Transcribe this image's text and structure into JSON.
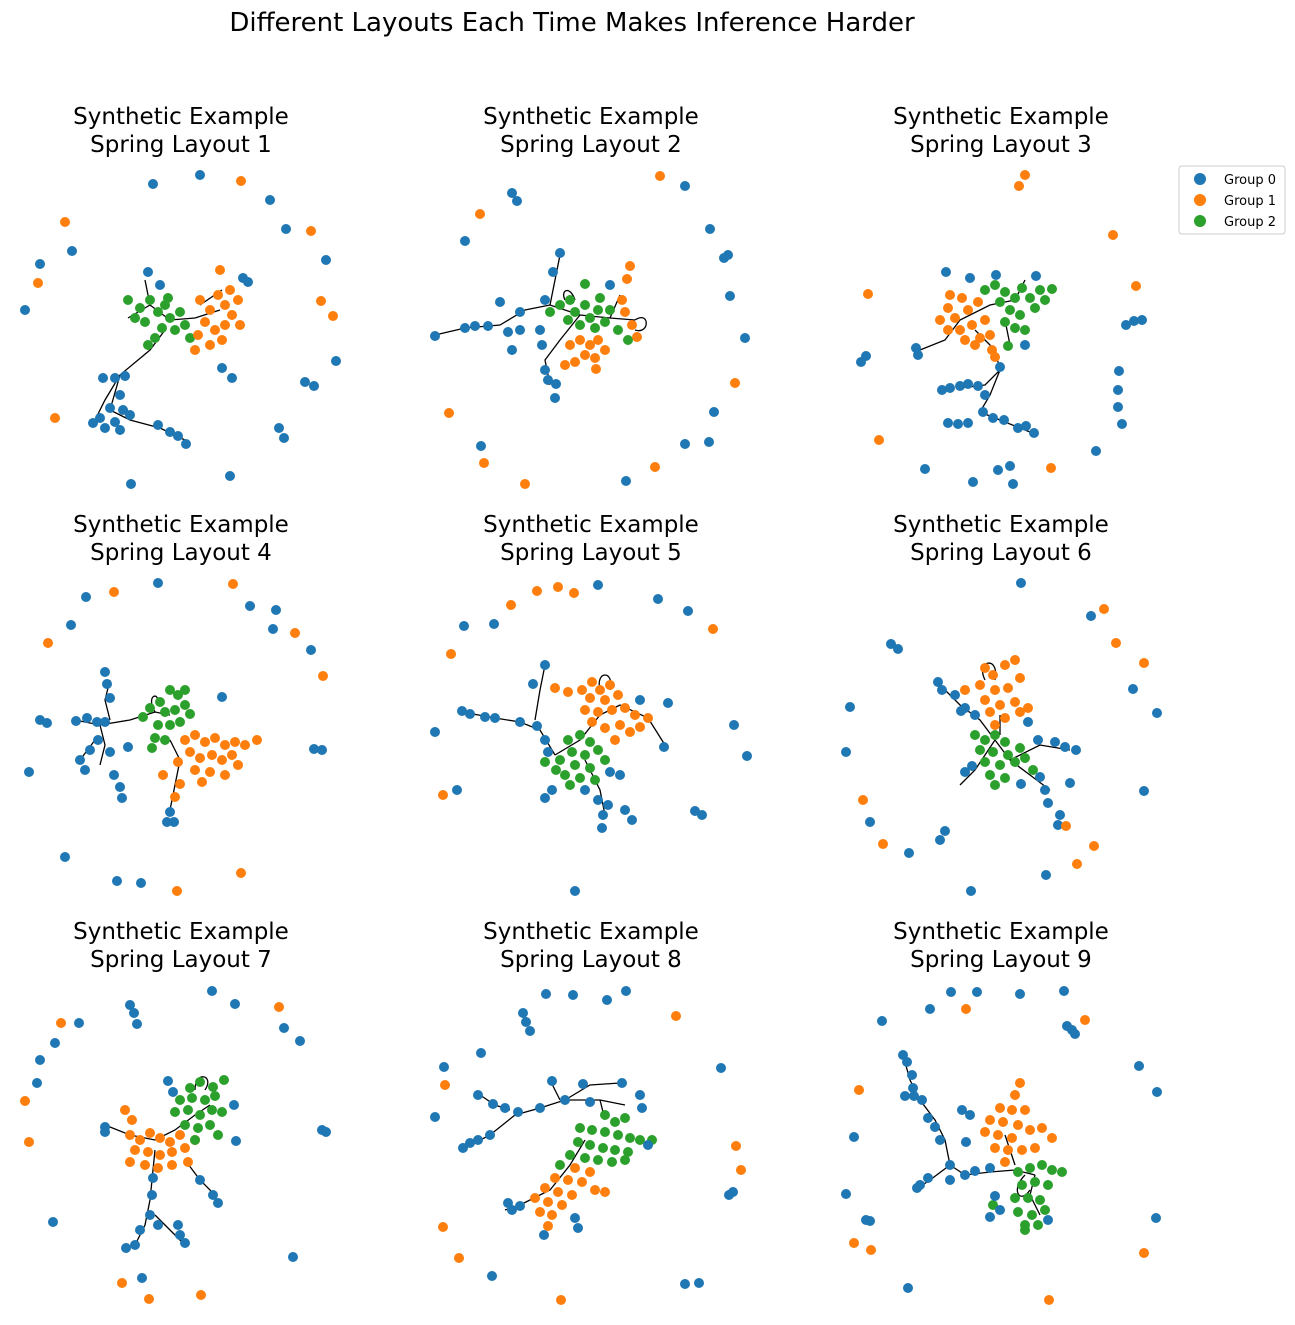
{
  "figure_title": "Different Layouts Each Time Makes Inference Harder",
  "colors": {
    "group0": "#1f77b4",
    "group1": "#ff7f0e",
    "group2": "#2ca02c",
    "edge": "#000000",
    "legend_border": "#cccccc"
  },
  "legend": [
    {
      "label": "Group 0",
      "color": "#1f77b4"
    },
    {
      "label": "Group 1",
      "color": "#ff7f0e"
    },
    {
      "label": "Group 2",
      "color": "#2ca02c"
    }
  ],
  "panels": [
    {
      "title_line1": "Synthetic Example",
      "title_line2": "Spring Layout 1"
    },
    {
      "title_line1": "Synthetic Example",
      "title_line2": "Spring Layout 2"
    },
    {
      "title_line1": "Synthetic Example",
      "title_line2": "Spring Layout 3"
    },
    {
      "title_line1": "Synthetic Example",
      "title_line2": "Spring Layout 4"
    },
    {
      "title_line1": "Synthetic Example",
      "title_line2": "Spring Layout 5"
    },
    {
      "title_line1": "Synthetic Example",
      "title_line2": "Spring Layout 6"
    },
    {
      "title_line1": "Synthetic Example",
      "title_line2": "Spring Layout 7"
    },
    {
      "title_line1": "Synthetic Example",
      "title_line2": "Spring Layout 8"
    },
    {
      "title_line1": "Synthetic Example",
      "title_line2": "Spring Layout 9"
    }
  ]
}
